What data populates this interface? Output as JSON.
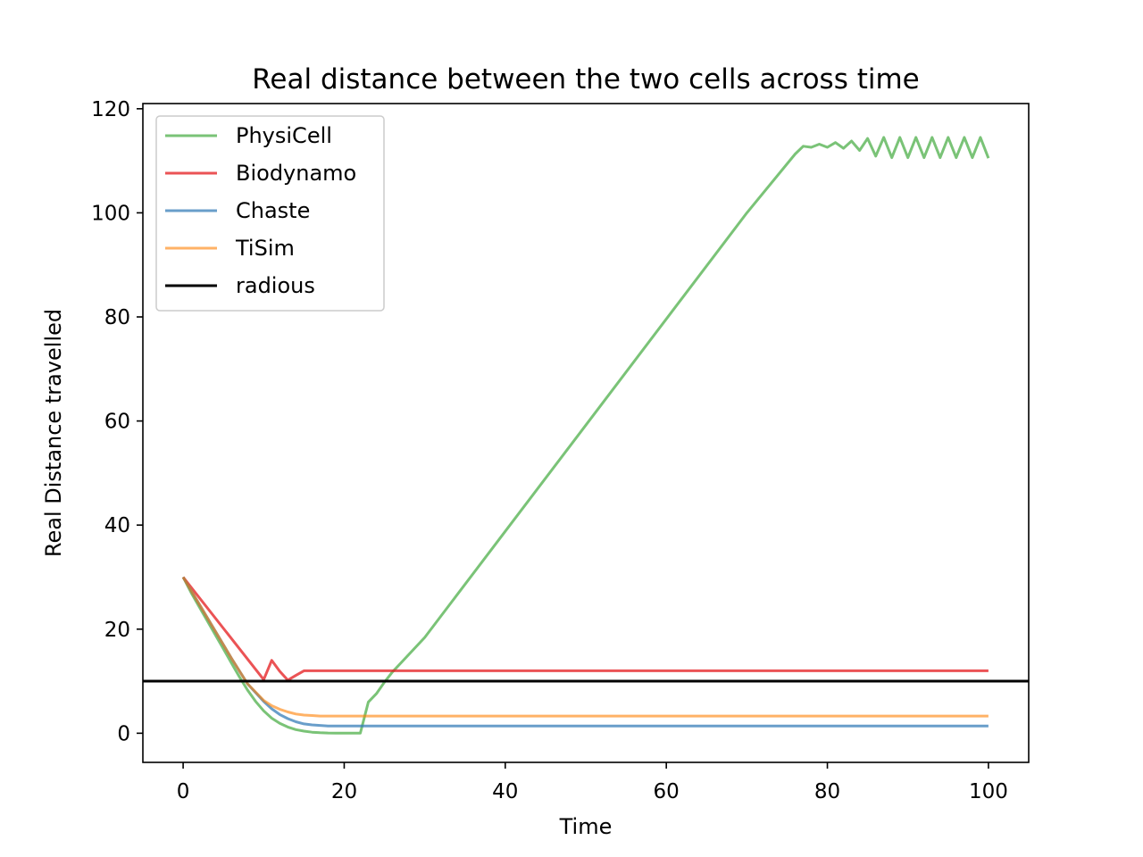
{
  "chart_data": {
    "type": "line",
    "title": "Real distance between the two cells across time",
    "xlabel": "Time",
    "ylabel": "Real Distance travelled",
    "xlim": [
      -5,
      105
    ],
    "ylim": [
      -5.6,
      121
    ],
    "xticks": [
      0,
      20,
      40,
      60,
      80,
      100
    ],
    "yticks": [
      0,
      20,
      40,
      60,
      80,
      100,
      120
    ],
    "grid": false,
    "legend_position": "upper-left",
    "series": [
      {
        "name": "PhysiCell",
        "color": "#4daf4a",
        "opacity": 0.75,
        "x": [
          0,
          1,
          2,
          3,
          4,
          5,
          6,
          7,
          8,
          9,
          10,
          11,
          12,
          13,
          14,
          15,
          16,
          17,
          18,
          19,
          20,
          21,
          22,
          23,
          24,
          25,
          26,
          30,
          40,
          50,
          60,
          70,
          76,
          77,
          78,
          79,
          80,
          81,
          82,
          83,
          84,
          85,
          86,
          87,
          88,
          89,
          90,
          91,
          92,
          93,
          94,
          95,
          96,
          97,
          98,
          99,
          100
        ],
        "y": [
          30,
          27,
          24.3,
          21.6,
          18.9,
          16.2,
          13.5,
          10.8,
          8.3,
          6.1,
          4.3,
          2.9,
          1.9,
          1.2,
          0.7,
          0.4,
          0.2,
          0.1,
          0.05,
          0.02,
          0.01,
          0.01,
          0.01,
          6,
          7.6,
          9.8,
          11.8,
          18.4,
          38.8,
          59.2,
          79.6,
          100,
          111.3,
          112.8,
          112.6,
          113.2,
          112.6,
          113.5,
          112.4,
          113.8,
          112.0,
          114.3,
          110.9,
          114.5,
          110.6,
          114.5,
          110.6,
          114.5,
          110.6,
          114.5,
          110.6,
          114.5,
          110.6,
          114.5,
          110.6,
          114.5,
          110.5
        ]
      },
      {
        "name": "Biodynamo",
        "color": "#e41a1c",
        "opacity": 0.75,
        "x": [
          0,
          10,
          11,
          12,
          13,
          14,
          15,
          16,
          20,
          40,
          60,
          80,
          100
        ],
        "y": [
          30,
          10.3,
          14,
          11.9,
          10.2,
          11.1,
          12,
          12,
          12,
          12,
          12,
          12,
          12
        ]
      },
      {
        "name": "Chaste",
        "color": "#377eb8",
        "opacity": 0.75,
        "x": [
          0,
          2,
          4,
          6,
          8,
          10,
          11,
          12,
          13,
          14,
          15,
          16,
          17,
          18,
          19,
          20,
          22,
          30,
          40,
          60,
          80,
          100
        ],
        "y": [
          30,
          24.8,
          19.6,
          14.4,
          9.5,
          6.1,
          4.7,
          3.6,
          2.8,
          2.2,
          1.8,
          1.6,
          1.5,
          1.4,
          1.4,
          1.4,
          1.4,
          1.4,
          1.4,
          1.4,
          1.4,
          1.4
        ]
      },
      {
        "name": "TiSim",
        "color": "#ff7f00",
        "opacity": 0.6,
        "x": [
          0,
          2,
          4,
          6,
          8,
          10,
          11,
          12,
          13,
          14,
          15,
          16,
          17,
          18,
          20,
          30,
          40,
          60,
          80,
          100
        ],
        "y": [
          30,
          24.8,
          19.6,
          14.4,
          9.5,
          6.3,
          5.3,
          4.6,
          4.1,
          3.7,
          3.5,
          3.4,
          3.3,
          3.3,
          3.3,
          3.3,
          3.3,
          3.3,
          3.3,
          3.3
        ]
      }
    ],
    "hlines": [
      {
        "name": "radious",
        "y": 10,
        "color": "#000000"
      }
    ],
    "legend": [
      "PhysiCell",
      "Biodynamo",
      "Chaste",
      "TiSim",
      "radious"
    ]
  }
}
